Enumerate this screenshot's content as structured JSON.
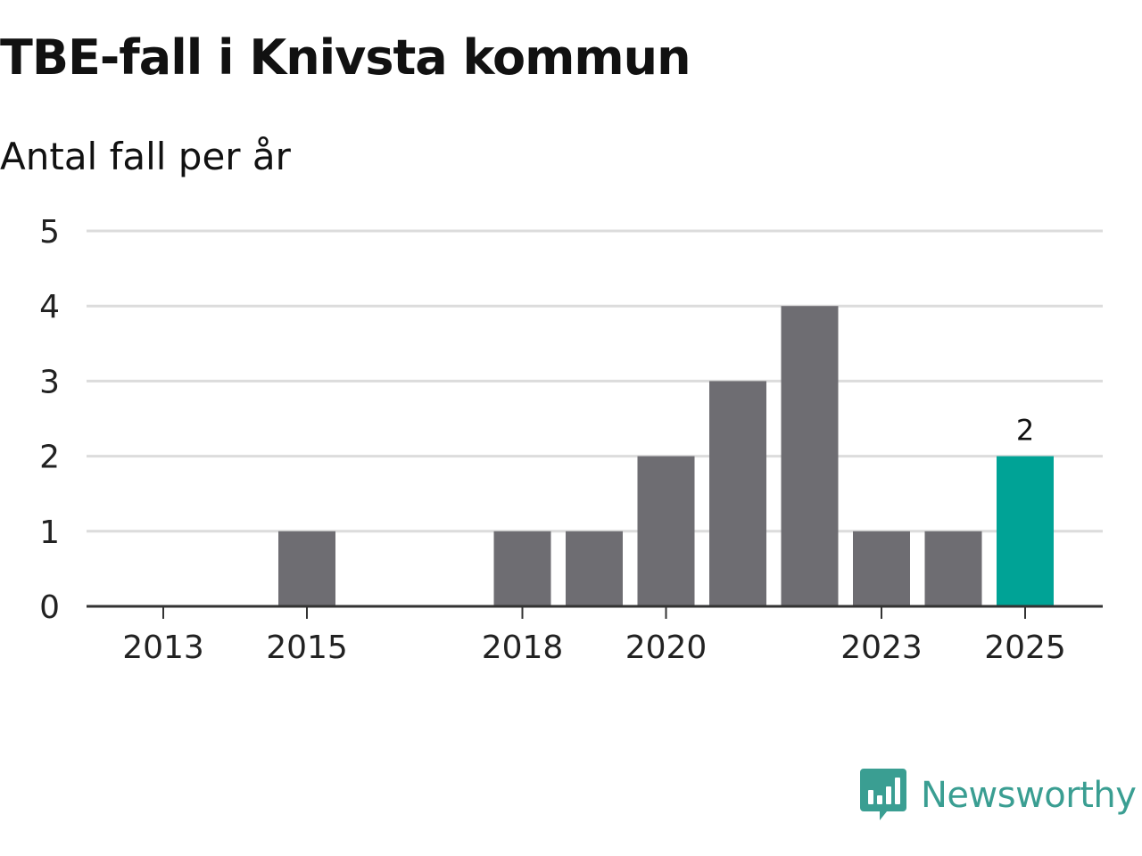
{
  "chart_data": {
    "type": "bar",
    "title": "TBE-fall i Knivsta kommun",
    "subtitle": "Antal fall per år",
    "xlabel": "",
    "ylabel": "",
    "categories": [
      "2013",
      "2014",
      "2015",
      "2016",
      "2017",
      "2018",
      "2019",
      "2020",
      "2021",
      "2022",
      "2023",
      "2024",
      "2025"
    ],
    "x_tick_labels": [
      "2013",
      "2015",
      "2018",
      "2020",
      "2023",
      "2025"
    ],
    "values": [
      0,
      0,
      1,
      0,
      0,
      1,
      1,
      2,
      3,
      4,
      1,
      1,
      2
    ],
    "ylim": [
      0,
      5
    ],
    "yticks": [
      "0",
      "1",
      "2",
      "3",
      "4",
      "5"
    ],
    "highlight_index": 12,
    "data_labels": [
      {
        "index": 12,
        "text": "2"
      }
    ],
    "grid": true,
    "colors": {
      "bar": "#6e6d72",
      "highlight": "#00a396",
      "grid": "#dcdcdc",
      "axis": "#333333"
    }
  },
  "brand": {
    "name": "Newsworthy",
    "icon": "bar-chart-speech-icon",
    "color": "#3a9e92"
  }
}
